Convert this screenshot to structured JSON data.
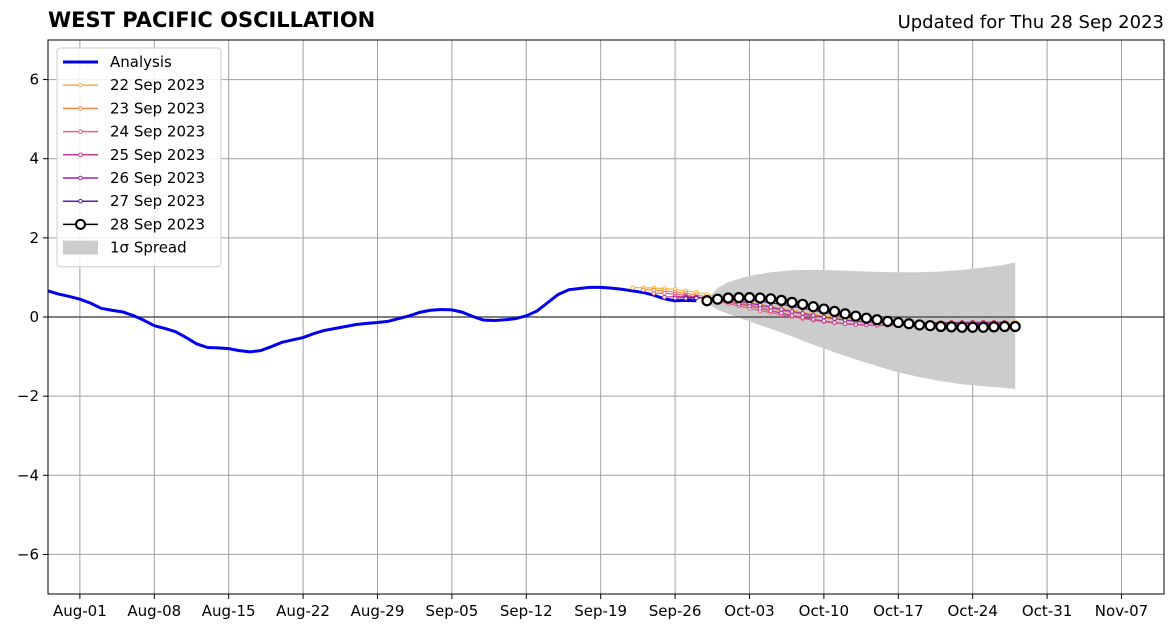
{
  "chart_data": {
    "type": "line",
    "title": "WEST PACIFIC OSCILLATION",
    "subtitle": "Updated for Thu 28 Sep 2023",
    "xlim": [
      "2023-07-29",
      "2023-11-11"
    ],
    "ylim": [
      -7,
      7
    ],
    "grid": true,
    "legend_position": "top-left",
    "x_ticks": [
      "Aug-01",
      "Aug-08",
      "Aug-15",
      "Aug-22",
      "Aug-29",
      "Sep-05",
      "Sep-12",
      "Sep-19",
      "Sep-26",
      "Oct-03",
      "Oct-10",
      "Oct-17",
      "Oct-24",
      "Oct-31",
      "Nov-07"
    ],
    "y_ticks": [
      "6",
      "4",
      "2",
      "0",
      "−2",
      "−4",
      "−6"
    ],
    "analysis": {
      "name": "Analysis",
      "color": "#0000ee",
      "x": [
        "2023-07-29",
        "2023-07-30",
        "2023-07-31",
        "2023-08-01",
        "2023-08-02",
        "2023-08-03",
        "2023-08-04",
        "2023-08-05",
        "2023-08-06",
        "2023-08-07",
        "2023-08-08",
        "2023-08-09",
        "2023-08-10",
        "2023-08-11",
        "2023-08-12",
        "2023-08-13",
        "2023-08-14",
        "2023-08-15",
        "2023-08-16",
        "2023-08-17",
        "2023-08-18",
        "2023-08-19",
        "2023-08-20",
        "2023-08-21",
        "2023-08-22",
        "2023-08-23",
        "2023-08-24",
        "2023-08-25",
        "2023-08-26",
        "2023-08-27",
        "2023-08-28",
        "2023-08-29",
        "2023-08-30",
        "2023-08-31",
        "2023-09-01",
        "2023-09-02",
        "2023-09-03",
        "2023-09-04",
        "2023-09-05",
        "2023-09-06",
        "2023-09-07",
        "2023-09-08",
        "2023-09-09",
        "2023-09-10",
        "2023-09-11",
        "2023-09-12",
        "2023-09-13",
        "2023-09-14",
        "2023-09-15",
        "2023-09-16",
        "2023-09-17",
        "2023-09-18",
        "2023-09-19",
        "2023-09-20",
        "2023-09-21",
        "2023-09-22",
        "2023-09-23",
        "2023-09-24",
        "2023-09-25",
        "2023-09-26",
        "2023-09-27",
        "2023-09-28"
      ],
      "y": [
        0.66,
        0.58,
        0.52,
        0.45,
        0.35,
        0.22,
        0.17,
        0.13,
        0.04,
        -0.08,
        -0.22,
        -0.29,
        -0.37,
        -0.52,
        -0.68,
        -0.77,
        -0.78,
        -0.8,
        -0.85,
        -0.88,
        -0.85,
        -0.75,
        -0.64,
        -0.58,
        -0.52,
        -0.42,
        -0.34,
        -0.29,
        -0.24,
        -0.19,
        -0.16,
        -0.14,
        -0.11,
        -0.04,
        0.03,
        0.12,
        0.17,
        0.19,
        0.18,
        0.12,
        0.01,
        -0.08,
        -0.09,
        -0.07,
        -0.04,
        0.03,
        0.15,
        0.36,
        0.57,
        0.69,
        0.72,
        0.75,
        0.75,
        0.73,
        0.7,
        0.66,
        0.62,
        0.55,
        0.46,
        0.41,
        0.42,
        0.41
      ]
    },
    "forecasts": [
      {
        "name": "22 Sep 2023",
        "color": "#fbb13c",
        "x": [
          "2023-09-22",
          "2023-09-23",
          "2023-09-24",
          "2023-09-25",
          "2023-09-26",
          "2023-09-27",
          "2023-09-28",
          "2023-09-29",
          "2023-09-30",
          "2023-10-01",
          "2023-10-02",
          "2023-10-03",
          "2023-10-04",
          "2023-10-05",
          "2023-10-06",
          "2023-10-07",
          "2023-10-08",
          "2023-10-09",
          "2023-10-10",
          "2023-10-11",
          "2023-10-12",
          "2023-10-13",
          "2023-10-14",
          "2023-10-15",
          "2023-10-16",
          "2023-10-17",
          "2023-10-18",
          "2023-10-19",
          "2023-10-20",
          "2023-10-21",
          "2023-10-22",
          "2023-10-23",
          "2023-10-24",
          "2023-10-25",
          "2023-10-26",
          "2023-10-27",
          "2023-10-28"
        ],
        "y": [
          0.74,
          0.74,
          0.73,
          0.72,
          0.7,
          0.66,
          0.62,
          0.57,
          0.52,
          0.47,
          0.42,
          0.37,
          0.32,
          0.27,
          0.22,
          0.17,
          0.12,
          0.07,
          0.03,
          -0.01,
          -0.04,
          -0.07,
          -0.09,
          -0.11,
          -0.12,
          -0.13,
          -0.13,
          -0.13,
          -0.13,
          -0.13,
          -0.12,
          -0.12,
          -0.12,
          -0.12,
          -0.12,
          -0.12,
          -0.12
        ]
      },
      {
        "name": "23 Sep 2023",
        "color": "#f28c40",
        "x": [
          "2023-09-23",
          "2023-09-24",
          "2023-09-25",
          "2023-09-26",
          "2023-09-27",
          "2023-09-28",
          "2023-09-29",
          "2023-09-30",
          "2023-10-01",
          "2023-10-02",
          "2023-10-03",
          "2023-10-04",
          "2023-10-05",
          "2023-10-06",
          "2023-10-07",
          "2023-10-08",
          "2023-10-09",
          "2023-10-10",
          "2023-10-11",
          "2023-10-12",
          "2023-10-13",
          "2023-10-14",
          "2023-10-15",
          "2023-10-16",
          "2023-10-17",
          "2023-10-18",
          "2023-10-19",
          "2023-10-20",
          "2023-10-21",
          "2023-10-22",
          "2023-10-23",
          "2023-10-24",
          "2023-10-25",
          "2023-10-26",
          "2023-10-27"
        ],
        "y": [
          0.69,
          0.68,
          0.66,
          0.63,
          0.6,
          0.56,
          0.51,
          0.46,
          0.41,
          0.36,
          0.31,
          0.26,
          0.21,
          0.16,
          0.11,
          0.06,
          0.02,
          -0.02,
          -0.05,
          -0.08,
          -0.1,
          -0.12,
          -0.13,
          -0.14,
          -0.14,
          -0.14,
          -0.14,
          -0.14,
          -0.14,
          -0.13,
          -0.13,
          -0.13,
          -0.13,
          -0.13,
          -0.13
        ]
      },
      {
        "name": "24 Sep 2023",
        "color": "#e0607e",
        "x": [
          "2023-09-24",
          "2023-09-25",
          "2023-09-26",
          "2023-09-27",
          "2023-09-28",
          "2023-09-29",
          "2023-09-30",
          "2023-10-01",
          "2023-10-02",
          "2023-10-03",
          "2023-10-04",
          "2023-10-05",
          "2023-10-06",
          "2023-10-07",
          "2023-10-08",
          "2023-10-09",
          "2023-10-10",
          "2023-10-11",
          "2023-10-12",
          "2023-10-13",
          "2023-10-14",
          "2023-10-15",
          "2023-10-16",
          "2023-10-17",
          "2023-10-18",
          "2023-10-19",
          "2023-10-20",
          "2023-10-21",
          "2023-10-22",
          "2023-10-23",
          "2023-10-24",
          "2023-10-25",
          "2023-10-26",
          "2023-10-27"
        ],
        "y": [
          0.6,
          0.6,
          0.58,
          0.55,
          0.51,
          0.46,
          0.4,
          0.34,
          0.28,
          0.22,
          0.16,
          0.11,
          0.06,
          0.01,
          -0.04,
          -0.08,
          -0.12,
          -0.15,
          -0.17,
          -0.19,
          -0.2,
          -0.2,
          -0.2,
          -0.19,
          -0.18,
          -0.17,
          -0.16,
          -0.15,
          -0.14,
          -0.14,
          -0.13,
          -0.13,
          -0.13,
          -0.13
        ]
      },
      {
        "name": "25 Sep 2023",
        "color": "#c33c8f",
        "x": [
          "2023-09-25",
          "2023-09-26",
          "2023-09-27",
          "2023-09-28",
          "2023-09-29",
          "2023-09-30",
          "2023-10-01",
          "2023-10-02",
          "2023-10-03",
          "2023-10-04",
          "2023-10-05",
          "2023-10-06",
          "2023-10-07",
          "2023-10-08",
          "2023-10-09",
          "2023-10-10",
          "2023-10-11",
          "2023-10-12",
          "2023-10-13",
          "2023-10-14",
          "2023-10-15",
          "2023-10-16",
          "2023-10-17",
          "2023-10-18",
          "2023-10-19",
          "2023-10-20",
          "2023-10-21",
          "2023-10-22",
          "2023-10-23",
          "2023-10-24",
          "2023-10-25",
          "2023-10-26",
          "2023-10-27"
        ],
        "y": [
          0.5,
          0.52,
          0.52,
          0.5,
          0.47,
          0.43,
          0.38,
          0.33,
          0.28,
          0.22,
          0.16,
          0.1,
          0.04,
          -0.01,
          -0.06,
          -0.1,
          -0.14,
          -0.17,
          -0.19,
          -0.2,
          -0.21,
          -0.21,
          -0.2,
          -0.19,
          -0.18,
          -0.17,
          -0.16,
          -0.15,
          -0.14,
          -0.14,
          -0.14,
          -0.14,
          -0.14
        ]
      },
      {
        "name": "26 Sep 2023",
        "color": "#9b27a8",
        "x": [
          "2023-09-26",
          "2023-09-27",
          "2023-09-28",
          "2023-09-29",
          "2023-09-30",
          "2023-10-01",
          "2023-10-02",
          "2023-10-03",
          "2023-10-04",
          "2023-10-05",
          "2023-10-06",
          "2023-10-07",
          "2023-10-08",
          "2023-10-09",
          "2023-10-10",
          "2023-10-11",
          "2023-10-12",
          "2023-10-13",
          "2023-10-14",
          "2023-10-15",
          "2023-10-16",
          "2023-10-17",
          "2023-10-18",
          "2023-10-19",
          "2023-10-20",
          "2023-10-21",
          "2023-10-22",
          "2023-10-23",
          "2023-10-24",
          "2023-10-25",
          "2023-10-26",
          "2023-10-27"
        ],
        "y": [
          0.48,
          0.49,
          0.5,
          0.49,
          0.47,
          0.44,
          0.4,
          0.35,
          0.3,
          0.25,
          0.19,
          0.14,
          0.09,
          0.04,
          0.0,
          -0.04,
          -0.08,
          -0.11,
          -0.13,
          -0.14,
          -0.15,
          -0.15,
          -0.15,
          -0.15,
          -0.15,
          -0.15,
          -0.15,
          -0.15,
          -0.15,
          -0.15,
          -0.16,
          -0.16
        ]
      },
      {
        "name": "27 Sep 2023",
        "color": "#5e1a9c",
        "x": [
          "2023-09-27",
          "2023-09-28",
          "2023-09-29",
          "2023-09-30",
          "2023-10-01",
          "2023-10-02",
          "2023-10-03",
          "2023-10-04",
          "2023-10-05",
          "2023-10-06",
          "2023-10-07",
          "2023-10-08",
          "2023-10-09",
          "2023-10-10",
          "2023-10-11",
          "2023-10-12",
          "2023-10-13",
          "2023-10-14",
          "2023-10-15",
          "2023-10-16",
          "2023-10-17",
          "2023-10-18",
          "2023-10-19",
          "2023-10-20",
          "2023-10-21",
          "2023-10-22",
          "2023-10-23",
          "2023-10-24",
          "2023-10-25",
          "2023-10-26"
        ],
        "y": [
          0.47,
          0.48,
          0.49,
          0.49,
          0.48,
          0.46,
          0.43,
          0.4,
          0.36,
          0.32,
          0.27,
          0.22,
          0.17,
          0.12,
          0.07,
          0.03,
          -0.01,
          -0.05,
          -0.08,
          -0.1,
          -0.12,
          -0.13,
          -0.14,
          -0.15,
          -0.15,
          -0.16,
          -0.16,
          -0.17,
          -0.17,
          -0.17
        ]
      },
      {
        "name": "28 Sep 2023",
        "color": "#000000",
        "x": [
          "2023-09-29",
          "2023-09-30",
          "2023-10-01",
          "2023-10-02",
          "2023-10-03",
          "2023-10-04",
          "2023-10-05",
          "2023-10-06",
          "2023-10-07",
          "2023-10-08",
          "2023-10-09",
          "2023-10-10",
          "2023-10-11",
          "2023-10-12",
          "2023-10-13",
          "2023-10-14",
          "2023-10-15",
          "2023-10-16",
          "2023-10-17",
          "2023-10-18",
          "2023-10-19",
          "2023-10-20",
          "2023-10-21",
          "2023-10-22",
          "2023-10-23",
          "2023-10-24",
          "2023-10-25",
          "2023-10-26",
          "2023-10-27",
          "2023-10-28"
        ],
        "y": [
          0.41,
          0.45,
          0.48,
          0.49,
          0.49,
          0.48,
          0.46,
          0.42,
          0.37,
          0.32,
          0.26,
          0.2,
          0.14,
          0.08,
          0.02,
          -0.03,
          -0.07,
          -0.11,
          -0.14,
          -0.17,
          -0.2,
          -0.22,
          -0.24,
          -0.25,
          -0.26,
          -0.26,
          -0.26,
          -0.25,
          -0.24,
          -0.24
        ]
      }
    ],
    "spread": {
      "name": "1σ Spread",
      "color": "#cccccc",
      "x": [
        "2023-09-29",
        "2023-09-30",
        "2023-10-01",
        "2023-10-03",
        "2023-10-05",
        "2023-10-07",
        "2023-10-09",
        "2023-10-11",
        "2023-10-13",
        "2023-10-15",
        "2023-10-17",
        "2023-10-19",
        "2023-10-21",
        "2023-10-23",
        "2023-10-25",
        "2023-10-27",
        "2023-10-28"
      ],
      "upper": [
        0.45,
        0.73,
        0.88,
        1.04,
        1.13,
        1.18,
        1.19,
        1.18,
        1.16,
        1.14,
        1.13,
        1.13,
        1.15,
        1.19,
        1.25,
        1.32,
        1.38
      ],
      "lower": [
        0.35,
        0.18,
        0.08,
        -0.11,
        -0.3,
        -0.49,
        -0.7,
        -0.89,
        -1.07,
        -1.24,
        -1.4,
        -1.52,
        -1.62,
        -1.7,
        -1.75,
        -1.79,
        -1.82
      ]
    }
  }
}
